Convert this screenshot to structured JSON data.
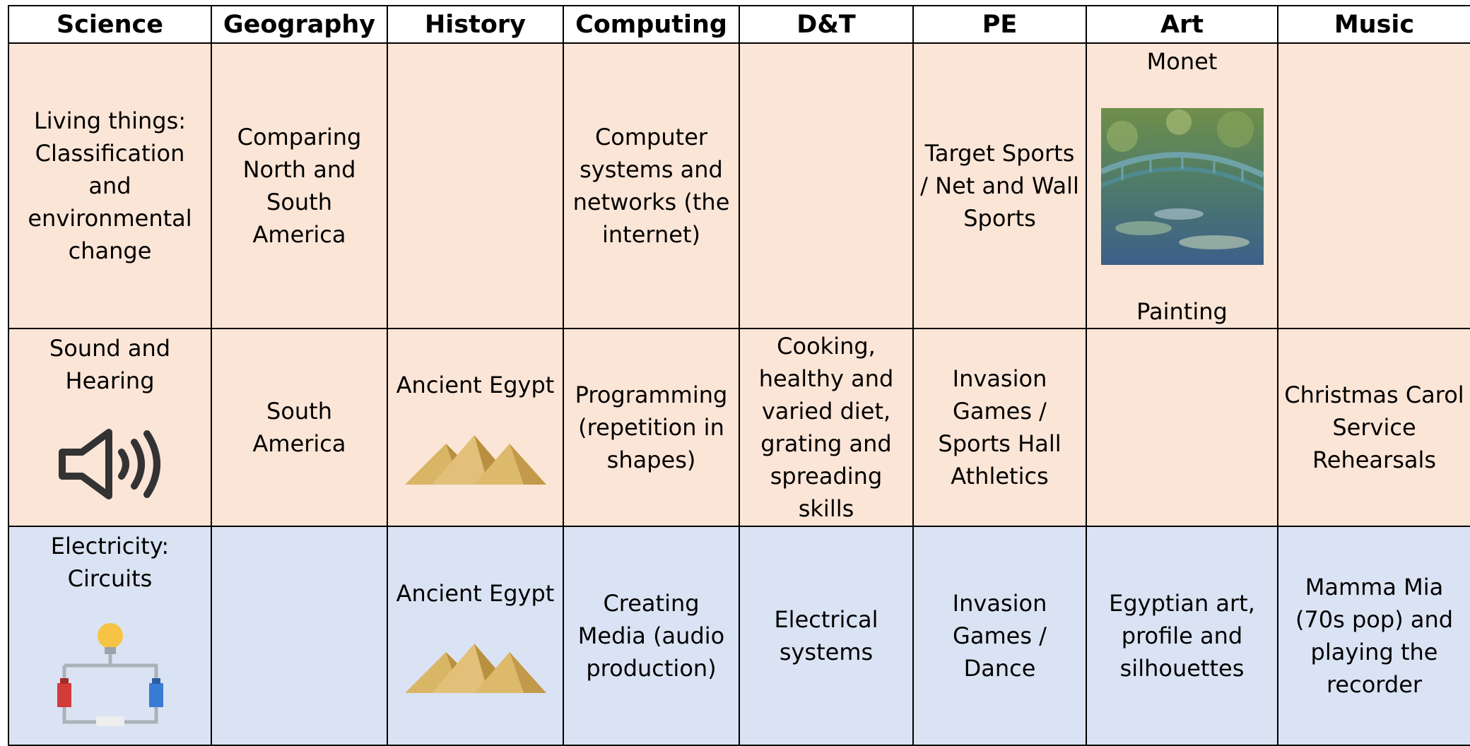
{
  "table": {
    "headers": [
      "Science",
      "Geography",
      "History",
      "Computing",
      "D&T",
      "PE",
      "Art",
      "Music"
    ],
    "rows": [
      [
        "Living things: Classification and environmental change",
        "Comparing North and South America",
        null,
        "Computer systems and networks (the internet)",
        null,
        "Target Sports / Net and Wall Sports",
        {
          "caption": "Monet",
          "label": "Painting"
        },
        null
      ],
      [
        "Sound and Hearing",
        "South America",
        "Ancient Egypt",
        "Programming (repetition in shapes)",
        "Cooking, healthy and varied diet, grating and spreading skills",
        "Invasion Games / Sports Hall Athletics",
        null,
        "Christmas Carol Service Rehearsals"
      ],
      [
        "Electricity: Circuits",
        null,
        "Ancient Egypt",
        "Creating Media (audio production)",
        "Electrical systems",
        "Invasion Games / Dance",
        "Egyptian art, profile and silhouettes",
        "Mamma Mia (70s pop) and playing the recorder"
      ]
    ]
  }
}
